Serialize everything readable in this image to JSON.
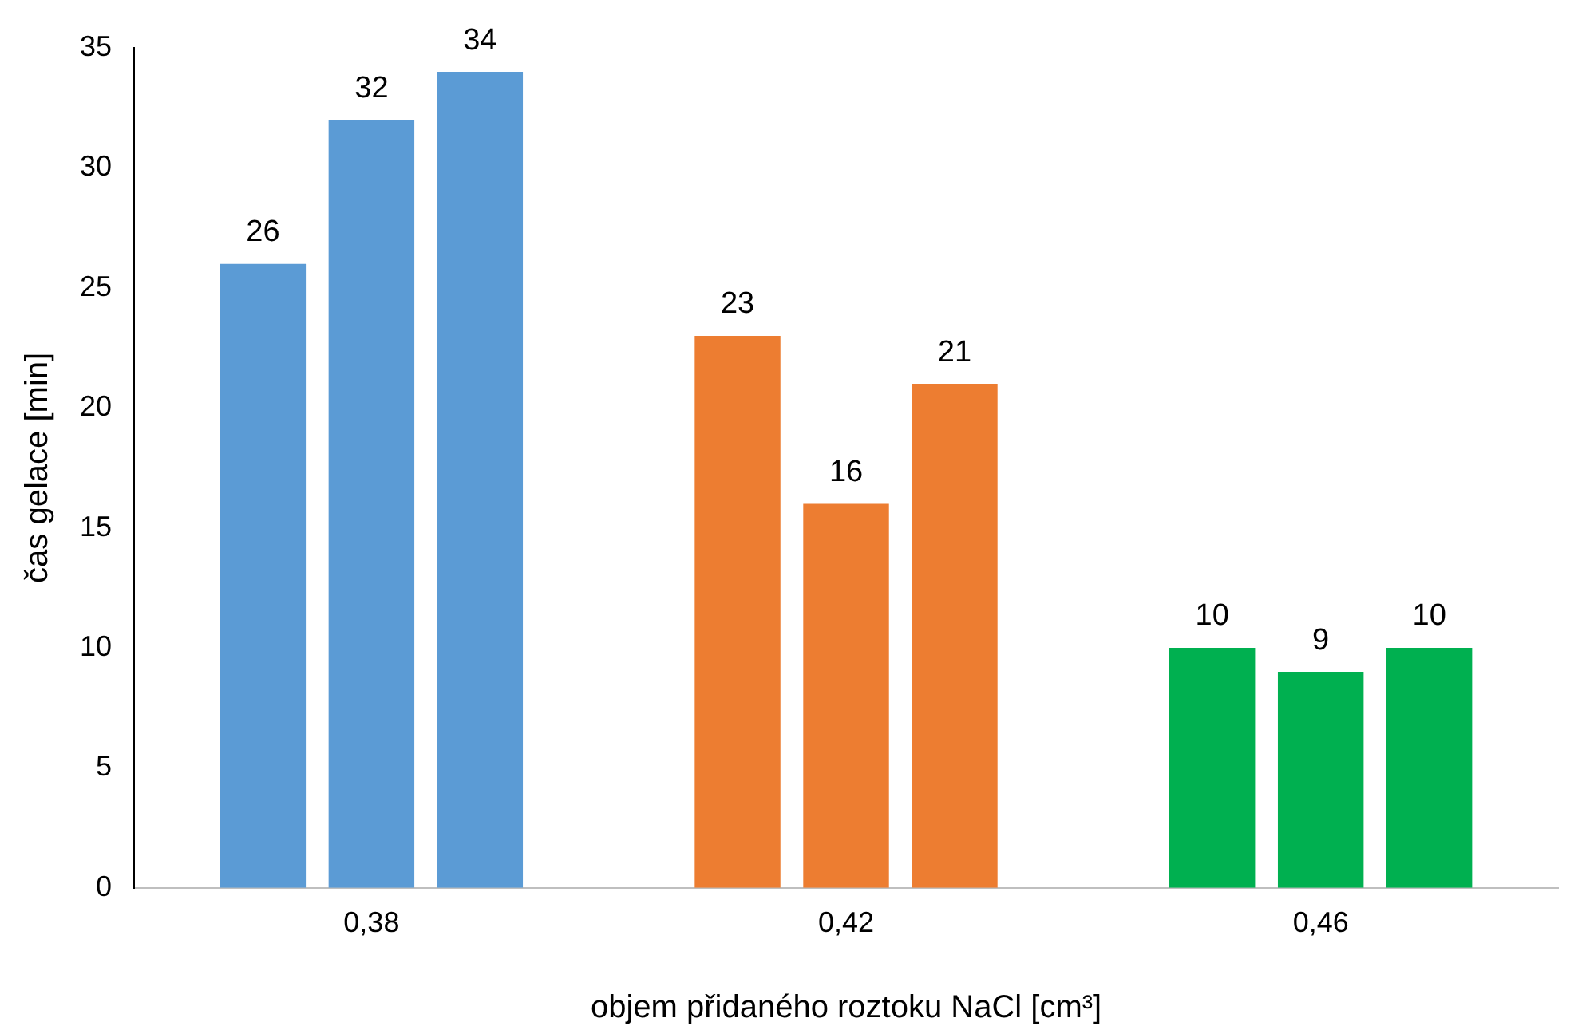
{
  "chart_data": {
    "type": "bar",
    "xlabel": "objem přidaného roztoku NaCl [cm³]",
    "ylabel": "čas gelace [min]",
    "categories": [
      "0,38",
      "0,42",
      "0,46"
    ],
    "series": [
      {
        "colors": [
          "#5b9bd5",
          "#ed7d31",
          "#00b050"
        ],
        "values": [
          26,
          23,
          10
        ]
      },
      {
        "colors": [
          "#5b9bd5",
          "#ed7d31",
          "#00b050"
        ],
        "values": [
          32,
          16,
          9
        ]
      },
      {
        "colors": [
          "#5b9bd5",
          "#ed7d31",
          "#00b050"
        ],
        "values": [
          34,
          21,
          10
        ]
      }
    ],
    "ylim": [
      0,
      35
    ],
    "yticks": [
      0,
      5,
      10,
      15,
      20,
      25,
      30,
      35
    ],
    "data_labels": true,
    "grid": false,
    "legend": false
  }
}
